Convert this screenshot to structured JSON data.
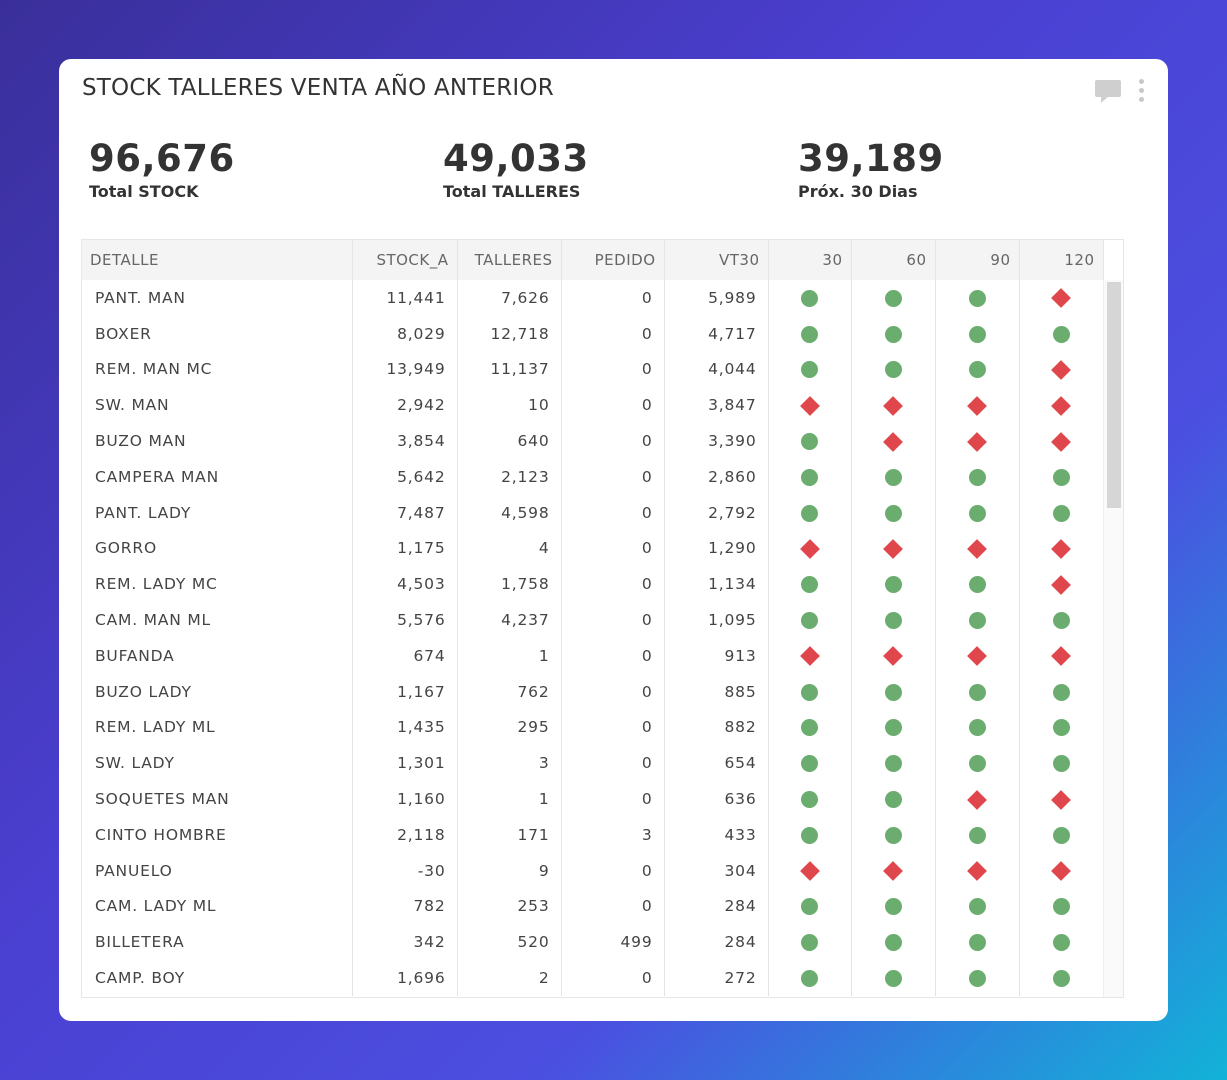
{
  "widget": {
    "title": "STOCK TALLERES VENTA AÑO ANTERIOR"
  },
  "kpis": [
    {
      "value": "96,676",
      "label": "Total STOCK"
    },
    {
      "value": "49,033",
      "label": "Total TALLERES"
    },
    {
      "value": "39,189",
      "label": "Próx. 30 Dias"
    }
  ],
  "table": {
    "columns": [
      "DETALLE",
      "STOCK_A",
      "TALLERES",
      "PEDIDO",
      "VT30",
      "30",
      "60",
      "90",
      "120"
    ],
    "rows": [
      {
        "detalle": "PANT. MAN",
        "stock_a": "11,441",
        "talleres": "7,626",
        "pedido": "0",
        "vt30": "5,989",
        "ind": [
          "ok",
          "ok",
          "ok",
          "alert"
        ]
      },
      {
        "detalle": "BOXER",
        "stock_a": "8,029",
        "talleres": "12,718",
        "pedido": "0",
        "vt30": "4,717",
        "ind": [
          "ok",
          "ok",
          "ok",
          "ok"
        ]
      },
      {
        "detalle": "REM. MAN MC",
        "stock_a": "13,949",
        "talleres": "11,137",
        "pedido": "0",
        "vt30": "4,044",
        "ind": [
          "ok",
          "ok",
          "ok",
          "alert"
        ]
      },
      {
        "detalle": "SW. MAN",
        "stock_a": "2,942",
        "talleres": "10",
        "pedido": "0",
        "vt30": "3,847",
        "ind": [
          "alert",
          "alert",
          "alert",
          "alert"
        ]
      },
      {
        "detalle": "BUZO MAN",
        "stock_a": "3,854",
        "talleres": "640",
        "pedido": "0",
        "vt30": "3,390",
        "ind": [
          "ok",
          "alert",
          "alert",
          "alert"
        ]
      },
      {
        "detalle": "CAMPERA MAN",
        "stock_a": "5,642",
        "talleres": "2,123",
        "pedido": "0",
        "vt30": "2,860",
        "ind": [
          "ok",
          "ok",
          "ok",
          "ok"
        ]
      },
      {
        "detalle": "PANT. LADY",
        "stock_a": "7,487",
        "talleres": "4,598",
        "pedido": "0",
        "vt30": "2,792",
        "ind": [
          "ok",
          "ok",
          "ok",
          "ok"
        ]
      },
      {
        "detalle": "GORRO",
        "stock_a": "1,175",
        "talleres": "4",
        "pedido": "0",
        "vt30": "1,290",
        "ind": [
          "alert",
          "alert",
          "alert",
          "alert"
        ]
      },
      {
        "detalle": "REM. LADY MC",
        "stock_a": "4,503",
        "talleres": "1,758",
        "pedido": "0",
        "vt30": "1,134",
        "ind": [
          "ok",
          "ok",
          "ok",
          "alert"
        ]
      },
      {
        "detalle": "CAM. MAN ML",
        "stock_a": "5,576",
        "talleres": "4,237",
        "pedido": "0",
        "vt30": "1,095",
        "ind": [
          "ok",
          "ok",
          "ok",
          "ok"
        ]
      },
      {
        "detalle": "BUFANDA",
        "stock_a": "674",
        "talleres": "1",
        "pedido": "0",
        "vt30": "913",
        "ind": [
          "alert",
          "alert",
          "alert",
          "alert"
        ]
      },
      {
        "detalle": "BUZO LADY",
        "stock_a": "1,167",
        "talleres": "762",
        "pedido": "0",
        "vt30": "885",
        "ind": [
          "ok",
          "ok",
          "ok",
          "ok"
        ]
      },
      {
        "detalle": "REM. LADY ML",
        "stock_a": "1,435",
        "talleres": "295",
        "pedido": "0",
        "vt30": "882",
        "ind": [
          "ok",
          "ok",
          "ok",
          "ok"
        ]
      },
      {
        "detalle": "SW. LADY",
        "stock_a": "1,301",
        "talleres": "3",
        "pedido": "0",
        "vt30": "654",
        "ind": [
          "ok",
          "ok",
          "ok",
          "ok"
        ]
      },
      {
        "detalle": "SOQUETES MAN",
        "stock_a": "1,160",
        "talleres": "1",
        "pedido": "0",
        "vt30": "636",
        "ind": [
          "ok",
          "ok",
          "alert",
          "alert"
        ]
      },
      {
        "detalle": "CINTO HOMBRE",
        "stock_a": "2,118",
        "talleres": "171",
        "pedido": "3",
        "vt30": "433",
        "ind": [
          "ok",
          "ok",
          "ok",
          "ok"
        ]
      },
      {
        "detalle": "PANUELO",
        "stock_a": "-30",
        "talleres": "9",
        "pedido": "0",
        "vt30": "304",
        "ind": [
          "alert",
          "alert",
          "alert",
          "alert"
        ]
      },
      {
        "detalle": "CAM. LADY ML",
        "stock_a": "782",
        "talleres": "253",
        "pedido": "0",
        "vt30": "284",
        "ind": [
          "ok",
          "ok",
          "ok",
          "ok"
        ]
      },
      {
        "detalle": "BILLETERA",
        "stock_a": "342",
        "talleres": "520",
        "pedido": "499",
        "vt30": "284",
        "ind": [
          "ok",
          "ok",
          "ok",
          "ok"
        ]
      },
      {
        "detalle": "CAMP. BOY",
        "stock_a": "1,696",
        "talleres": "2",
        "pedido": "0",
        "vt30": "272",
        "ind": [
          "ok",
          "ok",
          "ok",
          "ok"
        ]
      }
    ]
  },
  "colors": {
    "ok": "#6aad6e",
    "alert": "#e0474c"
  },
  "icons": {
    "comment": "comment-icon",
    "menu": "kebab-menu-icon"
  }
}
